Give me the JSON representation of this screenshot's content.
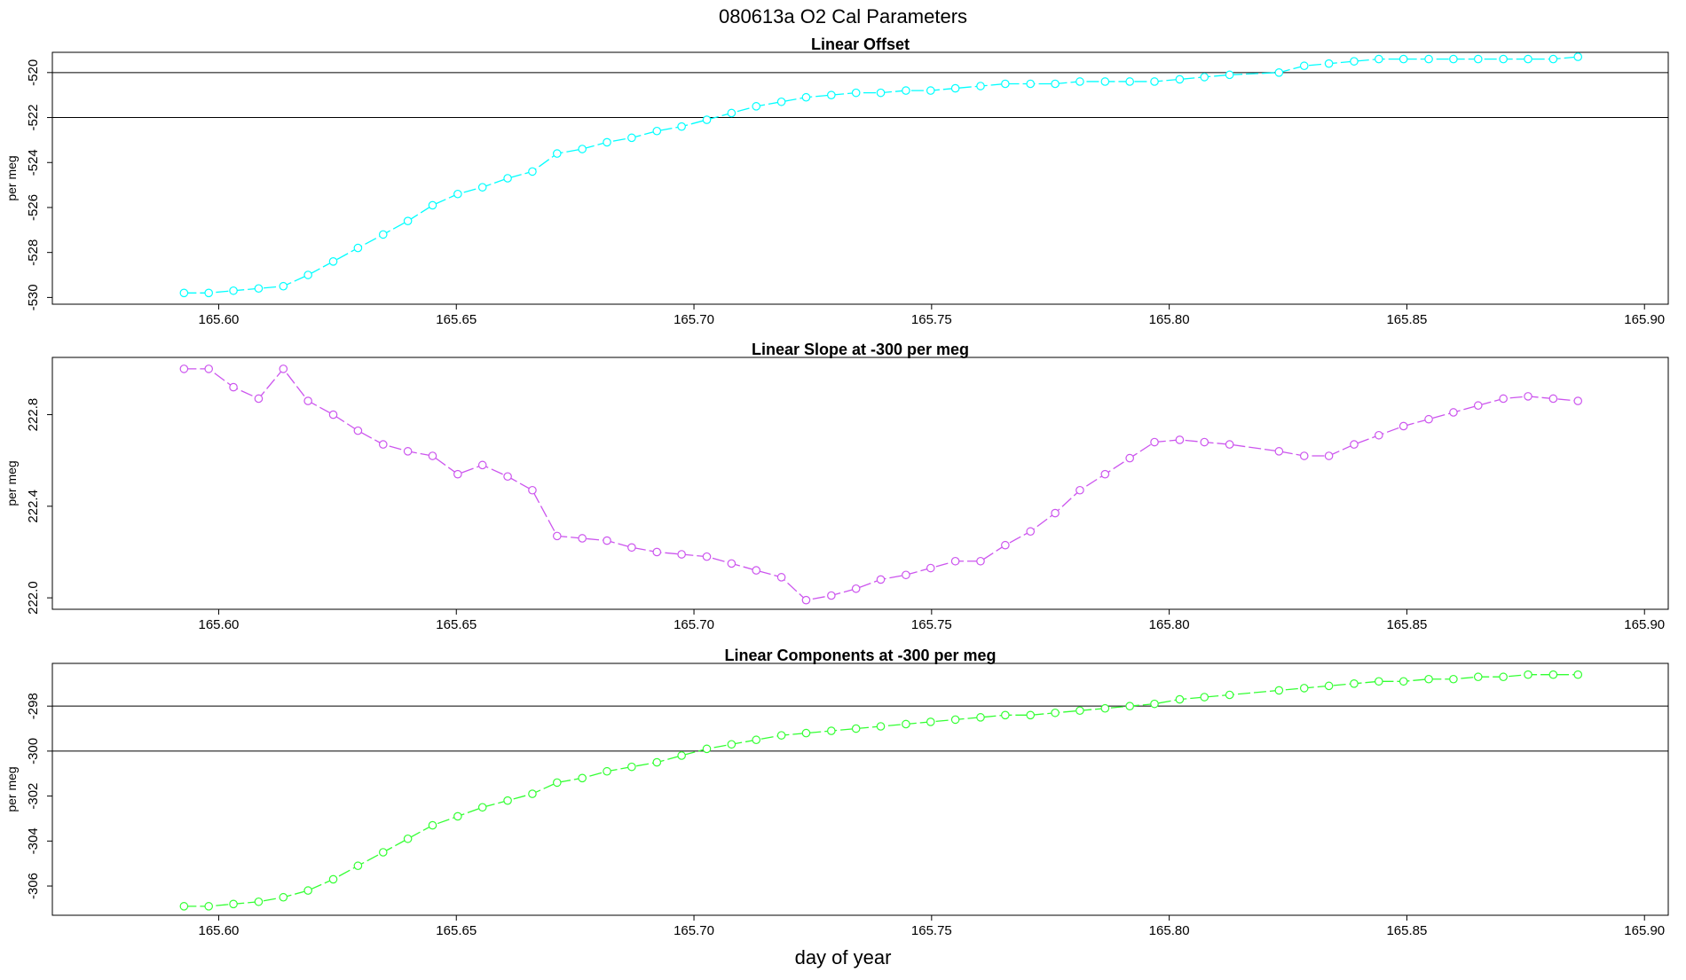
{
  "figure": {
    "title": "080613a   O2 Cal Parameters",
    "xlabel": "day of year"
  },
  "chart_data": [
    {
      "type": "line",
      "title": "Linear Offset",
      "ylabel": "per meg",
      "xlim": [
        165.565,
        165.905
      ],
      "ylim": [
        -530.3,
        -519.1
      ],
      "xticks": [
        "165.60",
        "165.65",
        "165.70",
        "165.75",
        "165.80",
        "165.85",
        "165.90"
      ],
      "yticks": [
        "-520",
        "-522",
        "-524",
        "-526",
        "-528",
        "-530"
      ],
      "hlines": [
        -520.0,
        -522.0
      ],
      "color": "#00ffff",
      "series": [
        {
          "x": [
            165.5927,
            165.5979,
            165.6031,
            165.6084,
            165.6136,
            165.6188,
            165.6241,
            165.6293,
            165.6346,
            165.6398,
            165.645,
            165.6503,
            165.6555,
            165.6608,
            165.666,
            165.6712,
            165.6765,
            165.6817,
            165.6869,
            165.6922,
            165.6974,
            165.7027,
            165.7079,
            165.7131,
            165.7184,
            165.7236,
            165.7289,
            165.7341,
            165.7393,
            165.7446,
            165.7498,
            165.755,
            165.7603,
            165.7655,
            165.7708,
            165.776,
            165.7812,
            165.7865,
            165.7917,
            165.7969,
            165.8022,
            165.8074,
            165.8127,
            165.8231,
            165.8284,
            165.8336,
            165.8389,
            165.8441,
            165.8493,
            165.8546,
            165.8598,
            165.865,
            165.8703,
            165.8755,
            165.8808,
            165.886
          ],
          "y": [
            -529.8,
            -529.8,
            -529.7,
            -529.6,
            -529.5,
            -529.0,
            -528.4,
            -527.8,
            -527.2,
            -526.6,
            -525.9,
            -525.4,
            -525.1,
            -524.7,
            -524.4,
            -523.6,
            -523.4,
            -523.1,
            -522.9,
            -522.6,
            -522.4,
            -522.1,
            -521.8,
            -521.5,
            -521.3,
            -521.1,
            -521.0,
            -520.9,
            -520.9,
            -520.8,
            -520.8,
            -520.7,
            -520.6,
            -520.5,
            -520.5,
            -520.5,
            -520.4,
            -520.4,
            -520.4,
            -520.4,
            -520.3,
            -520.2,
            -520.1,
            -520.0,
            -519.7,
            -519.6,
            -519.5,
            -519.4,
            -519.4,
            -519.4,
            -519.4,
            -519.4,
            -519.4,
            -519.4,
            -519.4,
            -519.3
          ]
        }
      ]
    },
    {
      "type": "line",
      "title": "Linear Slope at -300 per meg",
      "ylabel": "per meg",
      "xlim": [
        165.565,
        165.905
      ],
      "ylim": [
        221.95,
        223.05
      ],
      "xticks": [
        "165.60",
        "165.65",
        "165.70",
        "165.75",
        "165.80",
        "165.85",
        "165.90"
      ],
      "yticks": [
        "222.8",
        "222.4",
        "222.0"
      ],
      "hlines": [],
      "color": "#cc55ee",
      "series": [
        {
          "x": [
            165.5927,
            165.5979,
            165.6031,
            165.6084,
            165.6136,
            165.6188,
            165.6241,
            165.6293,
            165.6346,
            165.6398,
            165.645,
            165.6503,
            165.6555,
            165.6608,
            165.666,
            165.6712,
            165.6765,
            165.6817,
            165.6869,
            165.6922,
            165.6974,
            165.7027,
            165.7079,
            165.7131,
            165.7184,
            165.7236,
            165.7289,
            165.7341,
            165.7393,
            165.7446,
            165.7498,
            165.755,
            165.7603,
            165.7655,
            165.7708,
            165.776,
            165.7812,
            165.7865,
            165.7917,
            165.7969,
            165.8022,
            165.8074,
            165.8127,
            165.8231,
            165.8284,
            165.8336,
            165.8389,
            165.8441,
            165.8493,
            165.8546,
            165.8598,
            165.865,
            165.8703,
            165.8755,
            165.8808,
            165.886
          ],
          "y": [
            223.0,
            223.0,
            222.92,
            222.87,
            223.0,
            222.86,
            222.8,
            222.73,
            222.67,
            222.64,
            222.62,
            222.54,
            222.58,
            222.53,
            222.47,
            222.27,
            222.26,
            222.25,
            222.22,
            222.2,
            222.19,
            222.18,
            222.15,
            222.12,
            222.09,
            221.99,
            222.01,
            222.04,
            222.08,
            222.1,
            222.13,
            222.16,
            222.16,
            222.23,
            222.29,
            222.37,
            222.47,
            222.54,
            222.61,
            222.68,
            222.69,
            222.68,
            222.67,
            222.64,
            222.62,
            222.62,
            222.67,
            222.71,
            222.75,
            222.78,
            222.81,
            222.84,
            222.87,
            222.88,
            222.87,
            222.86
          ]
        }
      ]
    },
    {
      "type": "line",
      "title": "Linear Components at -300 per meg",
      "ylabel": "per meg",
      "xlim": [
        165.565,
        165.905
      ],
      "ylim": [
        -307.3,
        -296.1
      ],
      "xticks": [
        "165.60",
        "165.65",
        "165.70",
        "165.75",
        "165.80",
        "165.85",
        "165.90"
      ],
      "yticks": [
        "-298",
        "-300",
        "-302",
        "-304",
        "-306"
      ],
      "hlines": [
        -298.0,
        -300.0
      ],
      "color": "#33ff33",
      "series": [
        {
          "x": [
            165.5927,
            165.5979,
            165.6031,
            165.6084,
            165.6136,
            165.6188,
            165.6241,
            165.6293,
            165.6346,
            165.6398,
            165.645,
            165.6503,
            165.6555,
            165.6608,
            165.666,
            165.6712,
            165.6765,
            165.6817,
            165.6869,
            165.6922,
            165.6974,
            165.7027,
            165.7079,
            165.7131,
            165.7184,
            165.7236,
            165.7289,
            165.7341,
            165.7393,
            165.7446,
            165.7498,
            165.755,
            165.7603,
            165.7655,
            165.7708,
            165.776,
            165.7812,
            165.7865,
            165.7917,
            165.7969,
            165.8022,
            165.8074,
            165.8127,
            165.8231,
            165.8284,
            165.8336,
            165.8389,
            165.8441,
            165.8493,
            165.8546,
            165.8598,
            165.865,
            165.8703,
            165.8755,
            165.8808,
            165.886
          ],
          "y": [
            -306.9,
            -306.9,
            -306.8,
            -306.7,
            -306.5,
            -306.2,
            -305.7,
            -305.1,
            -304.5,
            -303.9,
            -303.3,
            -302.9,
            -302.5,
            -302.2,
            -301.9,
            -301.4,
            -301.2,
            -300.9,
            -300.7,
            -300.5,
            -300.2,
            -299.9,
            -299.7,
            -299.5,
            -299.3,
            -299.2,
            -299.1,
            -299.0,
            -298.9,
            -298.8,
            -298.7,
            -298.6,
            -298.5,
            -298.4,
            -298.4,
            -298.3,
            -298.2,
            -298.1,
            -298.0,
            -297.9,
            -297.7,
            -297.6,
            -297.5,
            -297.3,
            -297.2,
            -297.1,
            -297.0,
            -296.9,
            -296.9,
            -296.8,
            -296.8,
            -296.7,
            -296.7,
            -296.6,
            -296.6,
            -296.6
          ]
        }
      ]
    }
  ]
}
